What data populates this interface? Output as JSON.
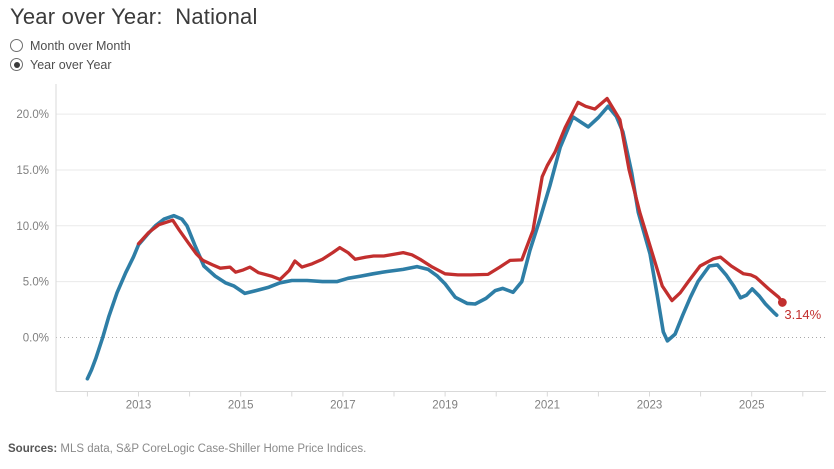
{
  "title": "Year over Year:  National",
  "controls": {
    "options": [
      {
        "label": "Month over Month",
        "selected": false
      },
      {
        "label": "Year over Year",
        "selected": true
      }
    ]
  },
  "footer": {
    "sources_label": "Sources:",
    "sources_text": " MLS data, S&P CoreLogic Case-Shiller Home Price Indices."
  },
  "colors": {
    "red_line": "#c22f2e",
    "blue_line": "#2e7ea6",
    "gridline": "#eaeaea",
    "zero_line": "#a8a8a8",
    "axis_line": "#d9d9d9",
    "tick_label": "#808080"
  },
  "chart_data": {
    "type": "line",
    "title": "Year over Year: National",
    "grid": "horizontal-only",
    "legend": "none",
    "y_axis": {
      "ticks": [
        0,
        5,
        10,
        15,
        20
      ],
      "tick_labels": [
        "0.0%",
        "5.0%",
        "10.0%",
        "15.0%",
        "20.0%"
      ],
      "range": [
        -4.7,
        22.7
      ],
      "zero_line_style": "dotted"
    },
    "x_axis": {
      "minor_tick_years": [
        2012,
        2013,
        2014,
        2015,
        2016,
        2017,
        2018,
        2019,
        2020,
        2021,
        2022,
        2023,
        2024,
        2025,
        2026
      ],
      "labeled_years": [
        "2013",
        "2015",
        "2017",
        "2019",
        "2021",
        "2023",
        "2025"
      ],
      "range": [
        2011.4,
        2026.5
      ]
    },
    "end_annotation": {
      "text": "3.14%",
      "series": "red"
    },
    "series": [
      {
        "name": "blue",
        "color": "#2e7ea6",
        "end_dot": false,
        "points": [
          [
            2012.0,
            -3.7
          ],
          [
            2012.08,
            -2.9
          ],
          [
            2012.17,
            -1.8
          ],
          [
            2012.3,
            0.0
          ],
          [
            2012.42,
            1.9
          ],
          [
            2012.58,
            4.0
          ],
          [
            2012.75,
            5.8
          ],
          [
            2012.9,
            7.2
          ],
          [
            2013.0,
            8.3
          ],
          [
            2013.17,
            9.2
          ],
          [
            2013.33,
            10.0
          ],
          [
            2013.5,
            10.6
          ],
          [
            2013.69,
            10.9
          ],
          [
            2013.85,
            10.6
          ],
          [
            2013.95,
            10.0
          ],
          [
            2014.1,
            8.3
          ],
          [
            2014.28,
            6.4
          ],
          [
            2014.5,
            5.5
          ],
          [
            2014.7,
            4.9
          ],
          [
            2014.87,
            4.6
          ],
          [
            2015.08,
            3.95
          ],
          [
            2015.3,
            4.2
          ],
          [
            2015.55,
            4.5
          ],
          [
            2015.77,
            4.9
          ],
          [
            2016.0,
            5.1
          ],
          [
            2016.3,
            5.1
          ],
          [
            2016.6,
            5.0
          ],
          [
            2016.88,
            5.0
          ],
          [
            2017.1,
            5.3
          ],
          [
            2017.35,
            5.5
          ],
          [
            2017.59,
            5.7
          ],
          [
            2017.85,
            5.9
          ],
          [
            2018.18,
            6.1
          ],
          [
            2018.45,
            6.35
          ],
          [
            2018.67,
            6.1
          ],
          [
            2018.85,
            5.5
          ],
          [
            2019.0,
            4.8
          ],
          [
            2019.2,
            3.6
          ],
          [
            2019.43,
            3.05
          ],
          [
            2019.59,
            3.0
          ],
          [
            2019.8,
            3.5
          ],
          [
            2019.98,
            4.2
          ],
          [
            2020.13,
            4.4
          ],
          [
            2020.33,
            4.05
          ],
          [
            2020.5,
            5.0
          ],
          [
            2020.66,
            7.8
          ],
          [
            2020.85,
            10.5
          ],
          [
            2021.05,
            13.6
          ],
          [
            2021.25,
            17.0
          ],
          [
            2021.5,
            19.75
          ],
          [
            2021.65,
            19.3
          ],
          [
            2021.8,
            18.85
          ],
          [
            2022.0,
            19.7
          ],
          [
            2022.19,
            20.7
          ],
          [
            2022.35,
            19.8
          ],
          [
            2022.48,
            18.4
          ],
          [
            2022.65,
            14.8
          ],
          [
            2022.78,
            11.2
          ],
          [
            2023.01,
            7.5
          ],
          [
            2023.15,
            3.8
          ],
          [
            2023.27,
            0.5
          ],
          [
            2023.35,
            -0.3
          ],
          [
            2023.5,
            0.3
          ],
          [
            2023.65,
            2.0
          ],
          [
            2023.8,
            3.6
          ],
          [
            2023.95,
            5.0
          ],
          [
            2024.17,
            6.4
          ],
          [
            2024.33,
            6.5
          ],
          [
            2024.5,
            5.6
          ],
          [
            2024.65,
            4.6
          ],
          [
            2024.78,
            3.55
          ],
          [
            2024.9,
            3.8
          ],
          [
            2025.01,
            4.35
          ],
          [
            2025.15,
            3.7
          ],
          [
            2025.27,
            3.0
          ],
          [
            2025.43,
            2.25
          ],
          [
            2025.49,
            2.0
          ]
        ]
      },
      {
        "name": "red",
        "color": "#c22f2e",
        "end_dot": true,
        "points": [
          [
            2013.0,
            8.4
          ],
          [
            2013.2,
            9.4
          ],
          [
            2013.4,
            10.1
          ],
          [
            2013.67,
            10.5
          ],
          [
            2013.8,
            9.6
          ],
          [
            2013.97,
            8.5
          ],
          [
            2014.13,
            7.5
          ],
          [
            2014.26,
            6.9
          ],
          [
            2014.45,
            6.5
          ],
          [
            2014.6,
            6.2
          ],
          [
            2014.79,
            6.3
          ],
          [
            2014.9,
            5.85
          ],
          [
            2015.05,
            6.05
          ],
          [
            2015.18,
            6.3
          ],
          [
            2015.35,
            5.8
          ],
          [
            2015.6,
            5.5
          ],
          [
            2015.77,
            5.2
          ],
          [
            2015.95,
            6.0
          ],
          [
            2016.06,
            6.85
          ],
          [
            2016.2,
            6.3
          ],
          [
            2016.4,
            6.6
          ],
          [
            2016.6,
            7.0
          ],
          [
            2016.8,
            7.6
          ],
          [
            2016.94,
            8.05
          ],
          [
            2017.1,
            7.6
          ],
          [
            2017.24,
            7.0
          ],
          [
            2017.45,
            7.2
          ],
          [
            2017.6,
            7.3
          ],
          [
            2017.8,
            7.3
          ],
          [
            2018.0,
            7.45
          ],
          [
            2018.18,
            7.6
          ],
          [
            2018.35,
            7.4
          ],
          [
            2018.51,
            7.0
          ],
          [
            2018.75,
            6.3
          ],
          [
            2019.0,
            5.7
          ],
          [
            2019.25,
            5.6
          ],
          [
            2019.5,
            5.6
          ],
          [
            2019.84,
            5.65
          ],
          [
            2020.07,
            6.3
          ],
          [
            2020.27,
            6.9
          ],
          [
            2020.5,
            6.95
          ],
          [
            2020.72,
            9.6
          ],
          [
            2020.9,
            14.4
          ],
          [
            2021.0,
            15.4
          ],
          [
            2021.15,
            16.6
          ],
          [
            2021.35,
            18.8
          ],
          [
            2021.6,
            21.05
          ],
          [
            2021.75,
            20.7
          ],
          [
            2021.93,
            20.45
          ],
          [
            2022.17,
            21.4
          ],
          [
            2022.42,
            19.5
          ],
          [
            2022.6,
            15.0
          ],
          [
            2022.81,
            11.2
          ],
          [
            2023.05,
            7.6
          ],
          [
            2023.25,
            4.6
          ],
          [
            2023.44,
            3.3
          ],
          [
            2023.6,
            4.0
          ],
          [
            2023.76,
            5.0
          ],
          [
            2023.99,
            6.4
          ],
          [
            2024.25,
            7.05
          ],
          [
            2024.39,
            7.2
          ],
          [
            2024.6,
            6.4
          ],
          [
            2024.84,
            5.7
          ],
          [
            2024.98,
            5.6
          ],
          [
            2025.08,
            5.4
          ],
          [
            2025.33,
            4.35
          ],
          [
            2025.53,
            3.6
          ],
          [
            2025.6,
            3.14
          ]
        ]
      }
    ]
  }
}
